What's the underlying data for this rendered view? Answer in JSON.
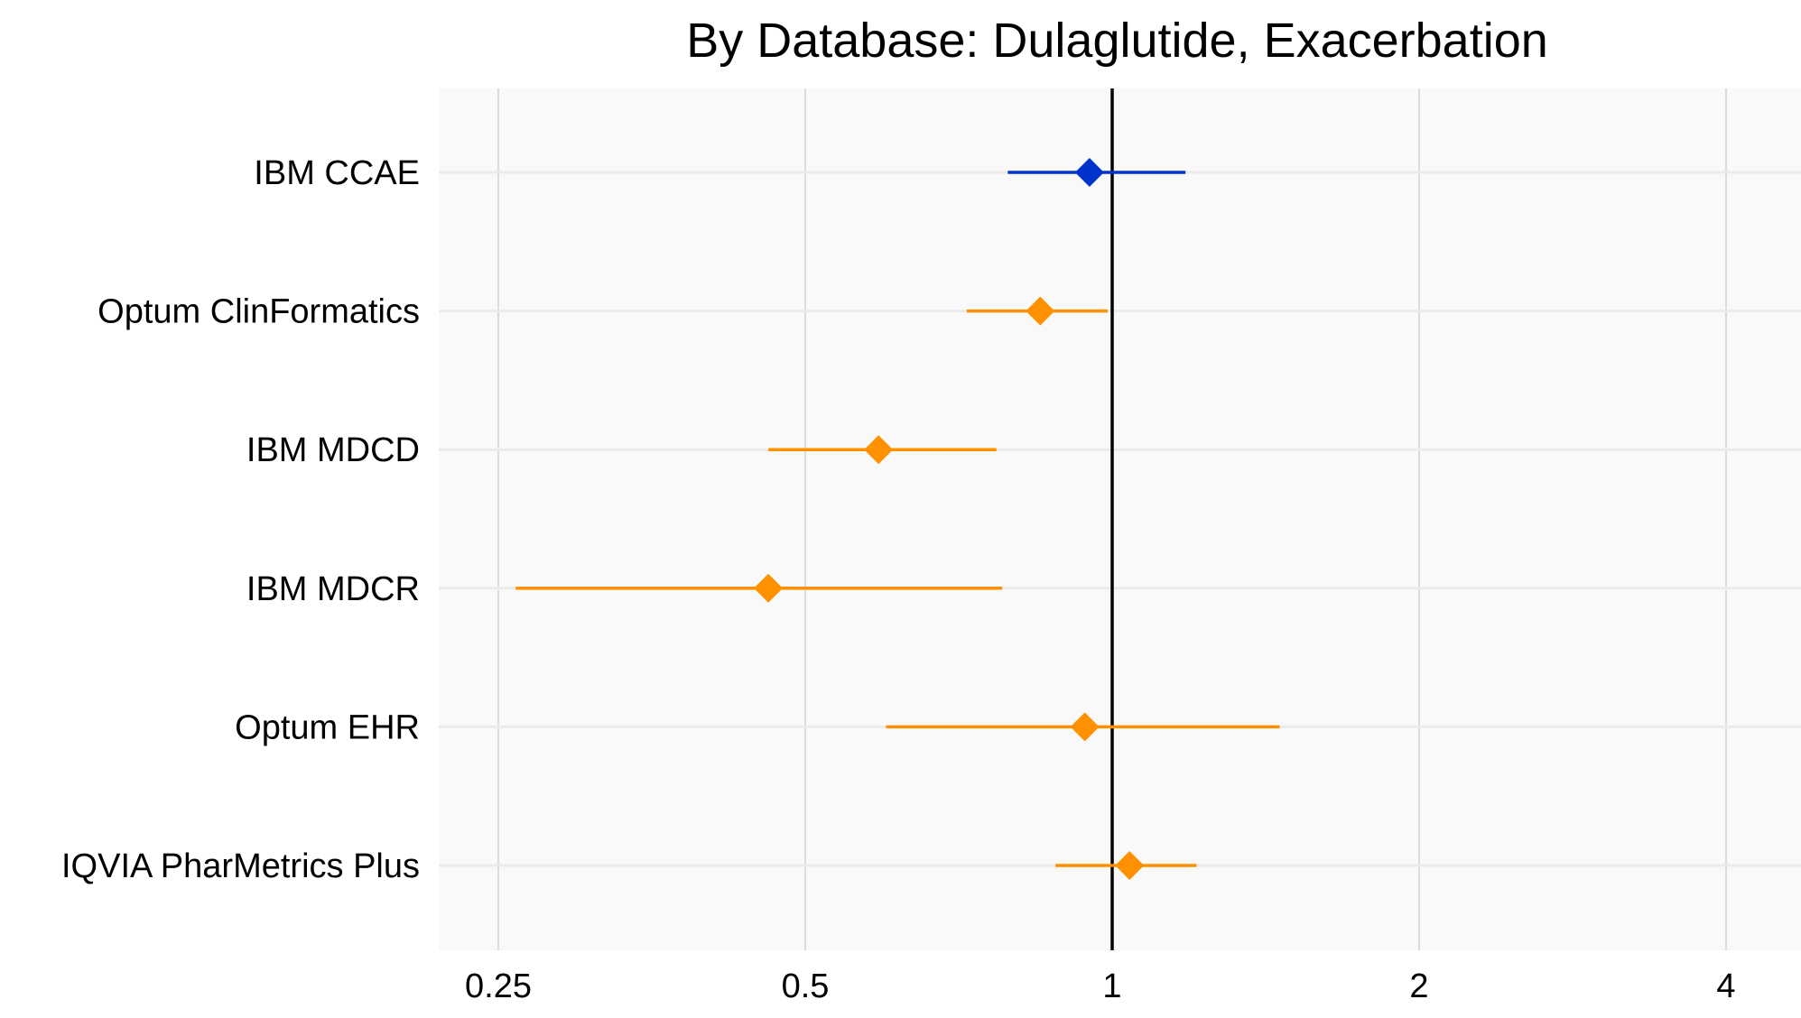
{
  "chart_data": {
    "type": "forest",
    "title": "By Database: Dulaglutide, Exacerbation",
    "xlabel": "",
    "ylabel": "",
    "x_scale": "log2",
    "xlim": [
      0.22,
      5.3
    ],
    "x_ticks": [
      0.25,
      0.5,
      1,
      2,
      4
    ],
    "x_tick_labels": [
      "0.25",
      "0.5",
      "1",
      "2",
      "4"
    ],
    "reference_line": 1,
    "grid": true,
    "colors": {
      "highlight": "#0033cc",
      "normal": "#ff9100",
      "background": "#f9f9f9",
      "grid": "#dcdcdc"
    },
    "rows": [
      {
        "label": "IBM CCAE",
        "estimate": 0.95,
        "ci_low": 0.79,
        "ci_high": 1.18,
        "highlight": true
      },
      {
        "label": "Optum ClinFormatics",
        "estimate": 0.85,
        "ci_low": 0.72,
        "ci_high": 0.99,
        "highlight": false
      },
      {
        "label": "IBM MDCD",
        "estimate": 0.59,
        "ci_low": 0.46,
        "ci_high": 0.77,
        "highlight": false
      },
      {
        "label": "IBM MDCR",
        "estimate": 0.46,
        "ci_low": 0.26,
        "ci_high": 0.78,
        "highlight": false
      },
      {
        "label": "Optum EHR",
        "estimate": 0.94,
        "ci_low": 0.6,
        "ci_high": 1.46,
        "highlight": false
      },
      {
        "label": "IQVIA PharMetrics Plus",
        "estimate": 1.04,
        "ci_low": 0.88,
        "ci_high": 1.21,
        "highlight": false
      }
    ]
  }
}
